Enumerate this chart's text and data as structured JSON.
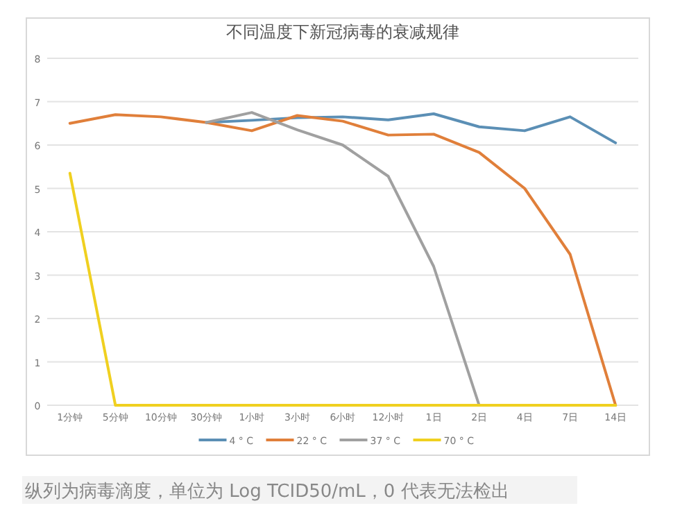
{
  "chart_data": {
    "type": "line",
    "title": "不同温度下新冠病毒的衰减规律",
    "categories": [
      "1分钟",
      "5分钟",
      "10分钟",
      "30分钟",
      "1小时",
      "3小时",
      "6小时",
      "12小时",
      "1日",
      "2日",
      "4日",
      "7日",
      "14日"
    ],
    "series": [
      {
        "name": "4 ° C",
        "color": "#5b8fb5",
        "values": [
          null,
          null,
          null,
          6.52,
          6.57,
          6.63,
          6.65,
          6.58,
          6.72,
          6.42,
          6.33,
          6.65,
          6.05
        ]
      },
      {
        "name": "22 ° C",
        "color": "#e07f3a",
        "values": [
          6.5,
          6.7,
          6.65,
          6.52,
          6.33,
          6.68,
          6.55,
          6.23,
          6.25,
          5.83,
          5.0,
          3.48,
          0
        ]
      },
      {
        "name": "37 ° C",
        "color": "#a0a0a0",
        "values": [
          null,
          null,
          null,
          6.52,
          6.75,
          6.35,
          6.0,
          5.28,
          3.2,
          0,
          null,
          null,
          null
        ]
      },
      {
        "name": "70 ° C",
        "color": "#f0d020",
        "values": [
          5.35,
          0,
          0,
          0,
          0,
          0,
          0,
          0,
          0,
          0,
          0,
          0,
          0
        ]
      }
    ],
    "ylim": [
      0,
      8
    ],
    "yticks": [
      0,
      1,
      2,
      3,
      4,
      5,
      6,
      7,
      8
    ],
    "grid": "y",
    "legend": "bottom",
    "annotations": [
      "纵列为病毒滴度，单位为 Log TCID50/mL，0 代表无法检出"
    ]
  }
}
